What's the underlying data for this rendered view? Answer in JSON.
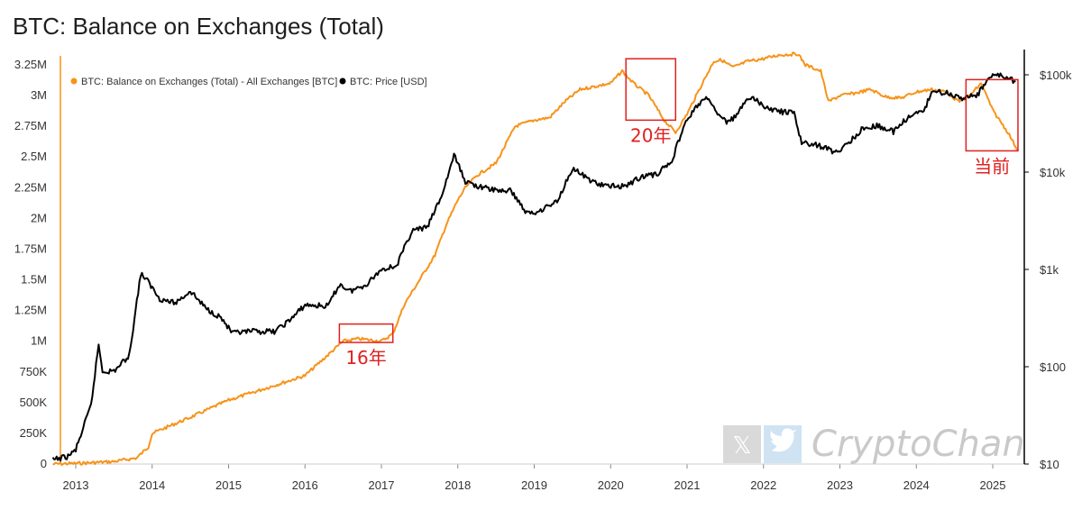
{
  "chart_data": {
    "type": "line",
    "title": "BTC: Balance on Exchanges (Total)",
    "legend": [
      "BTC: Balance on Exchanges (Total) - All Exchanges [BTC]",
      "BTC: Price [USD]"
    ],
    "legend_position": "top-left",
    "xlabel": "",
    "x_ticks": [
      "2013",
      "2014",
      "2015",
      "2016",
      "2017",
      "2018",
      "2019",
      "2020",
      "2021",
      "2022",
      "2023",
      "2024",
      "2025"
    ],
    "xlim": [
      2012.7,
      2025.4
    ],
    "y_left": {
      "ticks": [
        "0",
        "250K",
        "500K",
        "750K",
        "1M",
        "1.25M",
        "1.5M",
        "1.75M",
        "2M",
        "2.25M",
        "2.5M",
        "2.75M",
        "3M",
        "3.25M"
      ],
      "range": [
        0,
        3250000
      ]
    },
    "y_right": {
      "ticks": [
        "$10",
        "$100",
        "$1k",
        "$10k",
        "$100k"
      ],
      "scale": "log",
      "range": [
        10,
        160000
      ]
    },
    "series": [
      {
        "name": "BTC: Balance on Exchanges (Total) - All Exchanges [BTC]",
        "color": "#f7931a",
        "axis": "left",
        "x": [
          2012.7,
          2013.0,
          2013.5,
          2013.8,
          2013.95,
          2014.0,
          2014.5,
          2015.0,
          2015.5,
          2016.0,
          2016.5,
          2016.7,
          2017.0,
          2017.15,
          2017.3,
          2017.5,
          2017.7,
          2017.85,
          2018.0,
          2018.1,
          2018.25,
          2018.5,
          2018.75,
          2019.0,
          2019.2,
          2019.4,
          2019.6,
          2020.0,
          2020.15,
          2020.3,
          2020.5,
          2020.7,
          2020.85,
          2021.0,
          2021.2,
          2021.35,
          2021.45,
          2021.6,
          2021.8,
          2022.0,
          2022.2,
          2022.45,
          2022.55,
          2022.75,
          2022.85,
          2023.0,
          2023.2,
          2023.4,
          2023.6,
          2023.8,
          2024.0,
          2024.2,
          2024.4,
          2024.55,
          2024.7,
          2024.85,
          2025.0,
          2025.2,
          2025.33
        ],
        "values": [
          0,
          5000,
          20000,
          50000,
          140000,
          250000,
          380000,
          520000,
          620000,
          720000,
          1000000,
          1020000,
          1000000,
          1060000,
          1300000,
          1500000,
          1700000,
          1950000,
          2150000,
          2250000,
          2350000,
          2450000,
          2750000,
          2800000,
          2820000,
          2950000,
          3050000,
          3100000,
          3200000,
          3100000,
          3000000,
          2800000,
          2700000,
          2850000,
          3100000,
          3280000,
          3290000,
          3230000,
          3280000,
          3300000,
          3330000,
          3340000,
          3250000,
          3200000,
          2950000,
          3000000,
          3020000,
          3050000,
          2990000,
          2980000,
          3030000,
          3050000,
          3030000,
          2950000,
          3000000,
          3100000,
          2880000,
          2700000,
          2550000
        ]
      },
      {
        "name": "BTC: Price [USD]",
        "color": "#000000",
        "axis": "right",
        "x": [
          2012.7,
          2012.9,
          2013.0,
          2013.2,
          2013.3,
          2013.35,
          2013.5,
          2013.7,
          2013.85,
          2013.92,
          2014.1,
          2014.3,
          2014.5,
          2014.7,
          2014.9,
          2015.05,
          2015.3,
          2015.6,
          2015.8,
          2016.0,
          2016.3,
          2016.45,
          2016.6,
          2016.8,
          2017.0,
          2017.2,
          2017.4,
          2017.6,
          2017.8,
          2017.95,
          2018.1,
          2018.3,
          2018.5,
          2018.7,
          2018.9,
          2019.0,
          2019.3,
          2019.5,
          2019.7,
          2019.9,
          2020.2,
          2020.4,
          2020.6,
          2020.8,
          2020.95,
          2021.1,
          2021.25,
          2021.45,
          2021.55,
          2021.7,
          2021.85,
          2022.0,
          2022.2,
          2022.4,
          2022.5,
          2022.7,
          2022.9,
          2023.0,
          2023.3,
          2023.5,
          2023.7,
          2023.9,
          2024.1,
          2024.2,
          2024.4,
          2024.6,
          2024.8,
          2024.95,
          2025.1,
          2025.3
        ],
        "values": [
          11,
          12,
          14,
          40,
          170,
          90,
          90,
          130,
          900,
          800,
          500,
          450,
          600,
          400,
          320,
          220,
          230,
          230,
          300,
          430,
          420,
          700,
          600,
          700,
          1000,
          1100,
          2500,
          2700,
          6000,
          15000,
          8000,
          7000,
          6500,
          6400,
          3800,
          3800,
          5000,
          11000,
          8500,
          7200,
          7200,
          9000,
          9500,
          13000,
          29000,
          45000,
          58000,
          36000,
          32000,
          45000,
          60000,
          47000,
          42000,
          40000,
          20000,
          19000,
          16500,
          16500,
          28000,
          30000,
          26000,
          37000,
          42000,
          68000,
          65000,
          58000,
          62000,
          95000,
          100000,
          85000
        ]
      }
    ],
    "annotations": [
      {
        "label": "16年",
        "x_range": [
          2016.45,
          2017.15
        ],
        "y_range": [
          990000,
          1140000
        ]
      },
      {
        "label": "20年",
        "x_range": [
          2020.2,
          2020.85
        ],
        "y_range": [
          2800000,
          3300000
        ]
      },
      {
        "label": "当前",
        "x_range": [
          2024.65,
          2025.33
        ],
        "y_range": [
          2550000,
          3130000
        ]
      }
    ]
  },
  "watermark": {
    "text": "CryptoChan",
    "icons": [
      "x-logo-icon",
      "twitter-bird-icon"
    ]
  },
  "colors": {
    "balance": "#f7931a",
    "price": "#000000",
    "annotation": "#e02020",
    "left_axis": "#f7931a",
    "right_axis": "#000000"
  }
}
